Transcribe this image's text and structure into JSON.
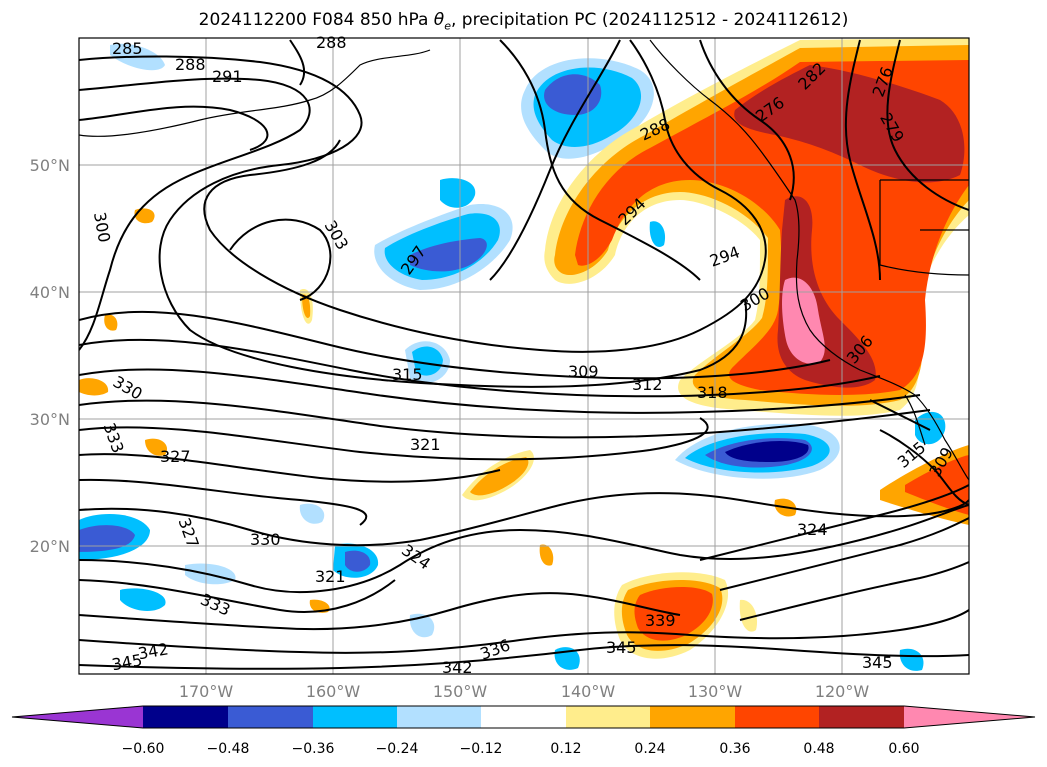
{
  "title": {
    "run": "2024112200 F084",
    "level": "850 hPa",
    "variable_label": "θ",
    "variable_sub": "e",
    "rest": ", precipitation PC (2024112512 - 2024112612)"
  },
  "lat_labels": [
    "50°N",
    "40°N",
    "30°N",
    "20°N"
  ],
  "lon_labels": [
    "170°W",
    "160°W",
    "150°W",
    "140°W",
    "130°W",
    "120°W"
  ],
  "contour_labels": [
    "285",
    "288",
    "291",
    "288",
    "300",
    "303",
    "297",
    "294",
    "294",
    "288",
    "276",
    "282",
    "276",
    "279",
    "300",
    "306",
    "309",
    "312",
    "315",
    "318",
    "321",
    "327",
    "330",
    "333",
    "327",
    "330",
    "324",
    "321",
    "324",
    "333",
    "336",
    "339",
    "342",
    "342",
    "345",
    "345",
    "345",
    "315",
    "309"
  ],
  "colorbar": {
    "ticks": [
      "−0.60",
      "−0.48",
      "−0.36",
      "−0.24",
      "−0.12",
      "0.12",
      "0.24",
      "0.36",
      "0.48",
      "0.60"
    ],
    "colors": [
      "#9a35d3",
      "#00008b",
      "#3a5bd4",
      "#00bfff",
      "#b2e0ff",
      "#ffffff",
      "#ffed8c",
      "#ffa500",
      "#ff4500",
      "#b22222",
      "#ff88b0"
    ]
  },
  "fill_colors": {
    "neg_light": "#b2e0ff",
    "neg_med": "#00bfff",
    "neg_strong": "#3a5bd4",
    "neg_max": "#00008b",
    "pos_light": "#ffed8c",
    "pos_med": "#ffa500",
    "pos_strong": "#ff4500",
    "pos_max": "#b22222",
    "pos_extreme": "#ff88b0"
  }
}
